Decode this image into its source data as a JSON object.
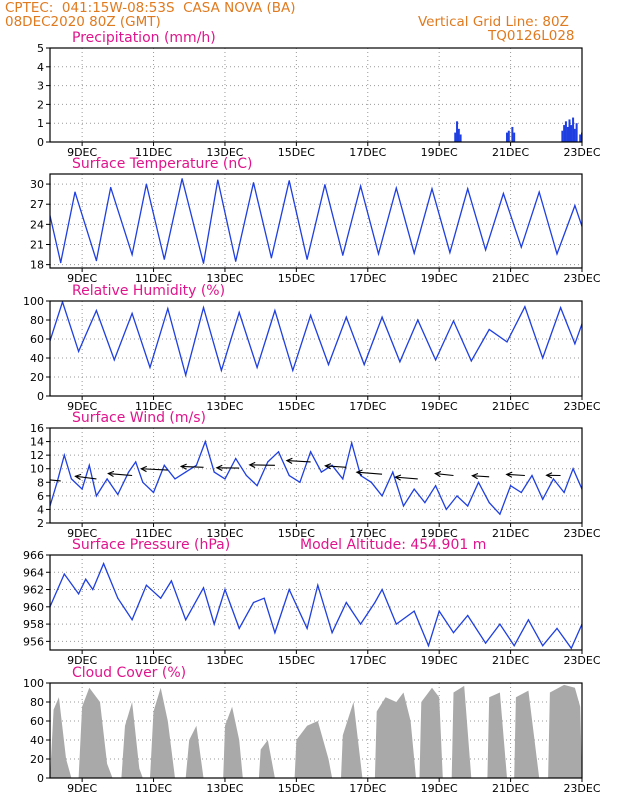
{
  "header": {
    "line1": "CPTEC:  041:15W-08:53S  CASA NOVA (BA)",
    "line2": "08DEC2020 80Z (GMT)",
    "grid_note": "Vertical Grid Line: 80Z",
    "code": "TQ0126L028"
  },
  "colors": {
    "header": "#e07a1f",
    "title": "#e0158c",
    "series": "#1f3fe0",
    "cloud": "#a9a9a9",
    "wind": "#000000"
  },
  "x_axis": {
    "start_day": 8.1,
    "end_day": 23.0,
    "ticks": [
      {
        "day": 9,
        "label": "9DEC"
      },
      {
        "day": 11,
        "label": "11DEC"
      },
      {
        "day": 13,
        "label": "13DEC"
      },
      {
        "day": 15,
        "label": "15DEC"
      },
      {
        "day": 17,
        "label": "17DEC"
      },
      {
        "day": 19,
        "label": "19DEC"
      },
      {
        "day": 21,
        "label": "21DEC"
      },
      {
        "day": 23,
        "label": "23DEC"
      }
    ]
  },
  "chart_data": [
    {
      "id": "precip",
      "type": "bar",
      "title": "Precipitation (mm/h)",
      "ylim": [
        0,
        5
      ],
      "yticks": [
        0,
        1,
        2,
        3,
        4,
        5
      ],
      "grid": true,
      "points": [
        {
          "x": 19.45,
          "y": 0.5
        },
        {
          "x": 19.5,
          "y": 1.1
        },
        {
          "x": 19.55,
          "y": 0.7
        },
        {
          "x": 19.6,
          "y": 0.4
        },
        {
          "x": 20.9,
          "y": 0.5
        },
        {
          "x": 20.95,
          "y": 0.6
        },
        {
          "x": 21.05,
          "y": 0.8
        },
        {
          "x": 21.1,
          "y": 0.5
        },
        {
          "x": 22.45,
          "y": 0.6
        },
        {
          "x": 22.5,
          "y": 0.9
        },
        {
          "x": 22.55,
          "y": 1.1
        },
        {
          "x": 22.6,
          "y": 0.8
        },
        {
          "x": 22.65,
          "y": 1.2
        },
        {
          "x": 22.7,
          "y": 0.9
        },
        {
          "x": 22.75,
          "y": 1.3
        },
        {
          "x": 22.8,
          "y": 0.7
        },
        {
          "x": 22.85,
          "y": 1.0
        },
        {
          "x": 22.95,
          "y": 0.4
        },
        {
          "x": 23.0,
          "y": 0.5
        }
      ]
    },
    {
      "id": "temp",
      "type": "line",
      "title": "Surface Temperature (nC)",
      "ylim": [
        17.5,
        31.5
      ],
      "yticks": [
        18,
        21,
        24,
        27,
        30
      ],
      "grid": true,
      "points": [
        {
          "x": 8.1,
          "y": 25.3
        },
        {
          "x": 8.4,
          "y": 18.3
        },
        {
          "x": 8.8,
          "y": 28.8
        },
        {
          "x": 9.4,
          "y": 18.6
        },
        {
          "x": 9.8,
          "y": 29.5
        },
        {
          "x": 10.4,
          "y": 19.5
        },
        {
          "x": 10.8,
          "y": 30.0
        },
        {
          "x": 11.3,
          "y": 18.8
        },
        {
          "x": 11.8,
          "y": 30.8
        },
        {
          "x": 12.4,
          "y": 18.2
        },
        {
          "x": 12.8,
          "y": 30.6
        },
        {
          "x": 13.3,
          "y": 18.5
        },
        {
          "x": 13.8,
          "y": 30.2
        },
        {
          "x": 14.3,
          "y": 19.0
        },
        {
          "x": 14.8,
          "y": 30.5
        },
        {
          "x": 15.3,
          "y": 18.8
        },
        {
          "x": 15.8,
          "y": 29.9
        },
        {
          "x": 16.3,
          "y": 19.4
        },
        {
          "x": 16.8,
          "y": 29.7
        },
        {
          "x": 17.3,
          "y": 19.6
        },
        {
          "x": 17.8,
          "y": 29.4
        },
        {
          "x": 18.3,
          "y": 19.7
        },
        {
          "x": 18.8,
          "y": 29.3
        },
        {
          "x": 19.3,
          "y": 19.8
        },
        {
          "x": 19.8,
          "y": 29.3
        },
        {
          "x": 20.3,
          "y": 20.2
        },
        {
          "x": 20.8,
          "y": 28.6
        },
        {
          "x": 21.3,
          "y": 20.6
        },
        {
          "x": 21.8,
          "y": 28.8
        },
        {
          "x": 22.3,
          "y": 19.6
        },
        {
          "x": 22.8,
          "y": 26.8
        },
        {
          "x": 23.0,
          "y": 23.7
        }
      ]
    },
    {
      "id": "rh",
      "type": "line",
      "title": "Relative Humidity (%)",
      "ylim": [
        0,
        100
      ],
      "yticks": [
        0,
        20,
        40,
        60,
        80,
        100
      ],
      "grid": true,
      "points": [
        {
          "x": 8.1,
          "y": 58
        },
        {
          "x": 8.45,
          "y": 99
        },
        {
          "x": 8.9,
          "y": 47
        },
        {
          "x": 9.4,
          "y": 90
        },
        {
          "x": 9.9,
          "y": 38
        },
        {
          "x": 10.4,
          "y": 87
        },
        {
          "x": 10.9,
          "y": 30
        },
        {
          "x": 11.4,
          "y": 92
        },
        {
          "x": 11.9,
          "y": 22
        },
        {
          "x": 12.4,
          "y": 93
        },
        {
          "x": 12.9,
          "y": 27
        },
        {
          "x": 13.4,
          "y": 88
        },
        {
          "x": 13.9,
          "y": 30
        },
        {
          "x": 14.4,
          "y": 90
        },
        {
          "x": 14.9,
          "y": 27
        },
        {
          "x": 15.4,
          "y": 85
        },
        {
          "x": 15.9,
          "y": 33
        },
        {
          "x": 16.4,
          "y": 83
        },
        {
          "x": 16.9,
          "y": 33
        },
        {
          "x": 17.4,
          "y": 83
        },
        {
          "x": 17.9,
          "y": 36
        },
        {
          "x": 18.4,
          "y": 80
        },
        {
          "x": 18.9,
          "y": 38
        },
        {
          "x": 19.4,
          "y": 79
        },
        {
          "x": 19.9,
          "y": 37
        },
        {
          "x": 20.4,
          "y": 70
        },
        {
          "x": 20.9,
          "y": 57
        },
        {
          "x": 21.4,
          "y": 94
        },
        {
          "x": 21.9,
          "y": 40
        },
        {
          "x": 22.4,
          "y": 93
        },
        {
          "x": 22.8,
          "y": 55
        },
        {
          "x": 23.0,
          "y": 76
        }
      ]
    },
    {
      "id": "wind",
      "type": "line",
      "title": "Surface Wind (m/s)",
      "ylim": [
        2,
        16
      ],
      "yticks": [
        2,
        4,
        6,
        8,
        10,
        12,
        14,
        16
      ],
      "grid": true,
      "points": [
        {
          "x": 8.1,
          "y": 4.5
        },
        {
          "x": 8.3,
          "y": 8.0
        },
        {
          "x": 8.5,
          "y": 12.0
        },
        {
          "x": 8.7,
          "y": 8.5
        },
        {
          "x": 9.0,
          "y": 7.0
        },
        {
          "x": 9.2,
          "y": 10.5
        },
        {
          "x": 9.4,
          "y": 6.0
        },
        {
          "x": 9.7,
          "y": 8.5
        },
        {
          "x": 10.0,
          "y": 6.2
        },
        {
          "x": 10.3,
          "y": 9.5
        },
        {
          "x": 10.5,
          "y": 11.0
        },
        {
          "x": 10.7,
          "y": 8.0
        },
        {
          "x": 11.0,
          "y": 6.5
        },
        {
          "x": 11.3,
          "y": 10.5
        },
        {
          "x": 11.6,
          "y": 8.5
        },
        {
          "x": 11.9,
          "y": 9.5
        },
        {
          "x": 12.2,
          "y": 10.5
        },
        {
          "x": 12.45,
          "y": 14.0
        },
        {
          "x": 12.7,
          "y": 9.5
        },
        {
          "x": 13.0,
          "y": 8.5
        },
        {
          "x": 13.3,
          "y": 11.5
        },
        {
          "x": 13.6,
          "y": 9.0
        },
        {
          "x": 13.9,
          "y": 7.5
        },
        {
          "x": 14.2,
          "y": 11.0
        },
        {
          "x": 14.5,
          "y": 12.5
        },
        {
          "x": 14.8,
          "y": 9.0
        },
        {
          "x": 15.1,
          "y": 8.0
        },
        {
          "x": 15.4,
          "y": 12.5
        },
        {
          "x": 15.7,
          "y": 9.5
        },
        {
          "x": 16.0,
          "y": 10.5
        },
        {
          "x": 16.3,
          "y": 8.5
        },
        {
          "x": 16.55,
          "y": 13.8
        },
        {
          "x": 16.8,
          "y": 9.0
        },
        {
          "x": 17.1,
          "y": 8.0
        },
        {
          "x": 17.4,
          "y": 6.0
        },
        {
          "x": 17.7,
          "y": 9.5
        },
        {
          "x": 18.0,
          "y": 4.5
        },
        {
          "x": 18.3,
          "y": 7.0
        },
        {
          "x": 18.6,
          "y": 5.0
        },
        {
          "x": 18.9,
          "y": 7.5
        },
        {
          "x": 19.2,
          "y": 4.0
        },
        {
          "x": 19.5,
          "y": 6.0
        },
        {
          "x": 19.8,
          "y": 4.5
        },
        {
          "x": 20.1,
          "y": 8.0
        },
        {
          "x": 20.4,
          "y": 5.0
        },
        {
          "x": 20.7,
          "y": 3.3
        },
        {
          "x": 21.0,
          "y": 7.5
        },
        {
          "x": 21.3,
          "y": 6.5
        },
        {
          "x": 21.6,
          "y": 9.0
        },
        {
          "x": 21.9,
          "y": 5.5
        },
        {
          "x": 22.2,
          "y": 8.5
        },
        {
          "x": 22.5,
          "y": 6.5
        },
        {
          "x": 22.75,
          "y": 10.0
        },
        {
          "x": 23.0,
          "y": 7.0
        }
      ],
      "vectors": [
        {
          "x": 8.4,
          "y": 8.2,
          "dx": -1.9,
          "dy": 1.1
        },
        {
          "x": 9.4,
          "y": 8.5,
          "dx": -1.5,
          "dy": 1.2
        },
        {
          "x": 10.4,
          "y": 9.0,
          "dx": -1.7,
          "dy": 0.9
        },
        {
          "x": 11.4,
          "y": 9.8,
          "dx": -1.9,
          "dy": 0.6
        },
        {
          "x": 12.4,
          "y": 10.2,
          "dx": -1.6,
          "dy": 0.4
        },
        {
          "x": 13.4,
          "y": 10.1,
          "dx": -1.6,
          "dy": 0.1
        },
        {
          "x": 14.4,
          "y": 10.5,
          "dx": -1.8,
          "dy": 0.2
        },
        {
          "x": 15.4,
          "y": 11.0,
          "dx": -1.7,
          "dy": 0.6
        },
        {
          "x": 16.4,
          "y": 10.2,
          "dx": -1.5,
          "dy": 0.7
        },
        {
          "x": 17.4,
          "y": 9.2,
          "dx": -1.8,
          "dy": 0.9
        },
        {
          "x": 18.4,
          "y": 8.5,
          "dx": -1.6,
          "dy": 0.8
        },
        {
          "x": 19.4,
          "y": 9.0,
          "dx": -1.3,
          "dy": 0.9
        },
        {
          "x": 20.4,
          "y": 8.8,
          "dx": -1.2,
          "dy": 0.5
        },
        {
          "x": 21.4,
          "y": 9.0,
          "dx": -1.3,
          "dy": 0.5
        },
        {
          "x": 22.4,
          "y": 9.0,
          "dx": -1.0,
          "dy": 0.1
        }
      ]
    },
    {
      "id": "press",
      "type": "line",
      "title": "Surface Pressure (hPa)",
      "subtitle": "Model Altitude: 454.901 m",
      "ylim": [
        955,
        966
      ],
      "yticks": [
        956,
        958,
        960,
        962,
        964,
        966
      ],
      "grid": true,
      "points": [
        {
          "x": 8.1,
          "y": 960.0
        },
        {
          "x": 8.5,
          "y": 963.8
        },
        {
          "x": 8.9,
          "y": 961.5
        },
        {
          "x": 9.1,
          "y": 963.2
        },
        {
          "x": 9.3,
          "y": 962.0
        },
        {
          "x": 9.6,
          "y": 965.0
        },
        {
          "x": 10.0,
          "y": 961.0
        },
        {
          "x": 10.4,
          "y": 958.5
        },
        {
          "x": 10.8,
          "y": 962.5
        },
        {
          "x": 11.2,
          "y": 961.0
        },
        {
          "x": 11.5,
          "y": 963.0
        },
        {
          "x": 11.9,
          "y": 958.5
        },
        {
          "x": 12.4,
          "y": 962.2
        },
        {
          "x": 12.7,
          "y": 958.0
        },
        {
          "x": 13.0,
          "y": 962.0
        },
        {
          "x": 13.4,
          "y": 957.5
        },
        {
          "x": 13.8,
          "y": 960.5
        },
        {
          "x": 14.1,
          "y": 961.0
        },
        {
          "x": 14.4,
          "y": 957.0
        },
        {
          "x": 14.8,
          "y": 962.0
        },
        {
          "x": 15.3,
          "y": 957.5
        },
        {
          "x": 15.6,
          "y": 962.5
        },
        {
          "x": 16.0,
          "y": 957.0
        },
        {
          "x": 16.4,
          "y": 960.5
        },
        {
          "x": 16.8,
          "y": 958.0
        },
        {
          "x": 17.2,
          "y": 960.5
        },
        {
          "x": 17.4,
          "y": 962.0
        },
        {
          "x": 17.8,
          "y": 958.0
        },
        {
          "x": 18.3,
          "y": 959.5
        },
        {
          "x": 18.7,
          "y": 955.5
        },
        {
          "x": 19.0,
          "y": 959.5
        },
        {
          "x": 19.4,
          "y": 957.0
        },
        {
          "x": 19.8,
          "y": 959.0
        },
        {
          "x": 20.3,
          "y": 955.8
        },
        {
          "x": 20.7,
          "y": 958.0
        },
        {
          "x": 21.1,
          "y": 955.5
        },
        {
          "x": 21.5,
          "y": 958.5
        },
        {
          "x": 21.9,
          "y": 955.5
        },
        {
          "x": 22.3,
          "y": 957.5
        },
        {
          "x": 22.7,
          "y": 955.2
        },
        {
          "x": 23.0,
          "y": 958.0
        }
      ]
    },
    {
      "id": "cloud",
      "type": "area",
      "title": "Cloud Cover (%)",
      "ylim": [
        0,
        100
      ],
      "yticks": [
        0,
        20,
        40,
        60,
        80,
        100
      ],
      "grid": true,
      "points": [
        {
          "x": 8.1,
          "y": 0
        },
        {
          "x": 8.2,
          "y": 72
        },
        {
          "x": 8.35,
          "y": 85
        },
        {
          "x": 8.55,
          "y": 20
        },
        {
          "x": 8.7,
          "y": 0
        },
        {
          "x": 8.9,
          "y": 0
        },
        {
          "x": 9.0,
          "y": 75
        },
        {
          "x": 9.2,
          "y": 95
        },
        {
          "x": 9.5,
          "y": 80
        },
        {
          "x": 9.7,
          "y": 15
        },
        {
          "x": 9.85,
          "y": 0
        },
        {
          "x": 10.1,
          "y": 0
        },
        {
          "x": 10.2,
          "y": 55
        },
        {
          "x": 10.4,
          "y": 80
        },
        {
          "x": 10.6,
          "y": 10
        },
        {
          "x": 10.7,
          "y": 0
        },
        {
          "x": 10.9,
          "y": 0
        },
        {
          "x": 11.0,
          "y": 70
        },
        {
          "x": 11.2,
          "y": 95
        },
        {
          "x": 11.4,
          "y": 60
        },
        {
          "x": 11.6,
          "y": 0
        },
        {
          "x": 11.9,
          "y": 0
        },
        {
          "x": 12.0,
          "y": 40
        },
        {
          "x": 12.2,
          "y": 55
        },
        {
          "x": 12.4,
          "y": 0
        },
        {
          "x": 12.95,
          "y": 0
        },
        {
          "x": 13.0,
          "y": 55
        },
        {
          "x": 13.2,
          "y": 75
        },
        {
          "x": 13.4,
          "y": 40
        },
        {
          "x": 13.5,
          "y": 0
        },
        {
          "x": 13.95,
          "y": 0
        },
        {
          "x": 14.0,
          "y": 30
        },
        {
          "x": 14.2,
          "y": 40
        },
        {
          "x": 14.4,
          "y": 0
        },
        {
          "x": 14.95,
          "y": 0
        },
        {
          "x": 15.0,
          "y": 40
        },
        {
          "x": 15.3,
          "y": 55
        },
        {
          "x": 15.6,
          "y": 60
        },
        {
          "x": 15.9,
          "y": 20
        },
        {
          "x": 16.0,
          "y": 0
        },
        {
          "x": 16.25,
          "y": 0
        },
        {
          "x": 16.3,
          "y": 45
        },
        {
          "x": 16.6,
          "y": 80
        },
        {
          "x": 16.85,
          "y": 0
        },
        {
          "x": 17.2,
          "y": 0
        },
        {
          "x": 17.25,
          "y": 70
        },
        {
          "x": 17.5,
          "y": 85
        },
        {
          "x": 17.8,
          "y": 80
        },
        {
          "x": 18.0,
          "y": 90
        },
        {
          "x": 18.2,
          "y": 60
        },
        {
          "x": 18.35,
          "y": 0
        },
        {
          "x": 18.45,
          "y": 0
        },
        {
          "x": 18.5,
          "y": 80
        },
        {
          "x": 18.8,
          "y": 95
        },
        {
          "x": 19.0,
          "y": 85
        },
        {
          "x": 19.1,
          "y": 0
        },
        {
          "x": 19.35,
          "y": 0
        },
        {
          "x": 19.4,
          "y": 90
        },
        {
          "x": 19.7,
          "y": 97
        },
        {
          "x": 19.9,
          "y": 0
        },
        {
          "x": 20.35,
          "y": 0
        },
        {
          "x": 20.4,
          "y": 85
        },
        {
          "x": 20.7,
          "y": 90
        },
        {
          "x": 20.9,
          "y": 0
        },
        {
          "x": 21.1,
          "y": 0
        },
        {
          "x": 21.15,
          "y": 85
        },
        {
          "x": 21.5,
          "y": 92
        },
        {
          "x": 21.8,
          "y": 0
        },
        {
          "x": 22.05,
          "y": 0
        },
        {
          "x": 22.1,
          "y": 90
        },
        {
          "x": 22.5,
          "y": 98
        },
        {
          "x": 22.8,
          "y": 95
        },
        {
          "x": 22.95,
          "y": 75
        },
        {
          "x": 23.0,
          "y": 0
        }
      ]
    }
  ]
}
